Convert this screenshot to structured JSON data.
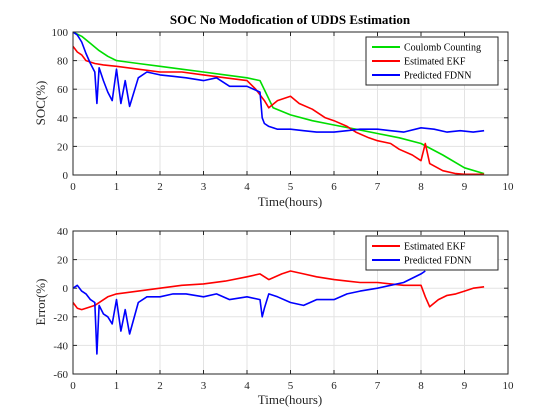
{
  "chart_data": [
    {
      "type": "line",
      "title": "SOC No Modofication of UDDS Estimation",
      "xlabel": "Time(hours)",
      "ylabel": "SOC(%)",
      "xlim": [
        0,
        10
      ],
      "ylim": [
        0,
        100
      ],
      "xticks": [
        "0",
        "1",
        "2",
        "3",
        "4",
        "5",
        "6",
        "7",
        "8",
        "9",
        "10"
      ],
      "yticks": [
        "0",
        "20",
        "40",
        "60",
        "80",
        "100"
      ],
      "grid": true,
      "legend_position": "top-right",
      "series": [
        {
          "name": "Coulomb Counting",
          "color": "#00dd00",
          "x": [
            0,
            0.2,
            0.4,
            0.6,
            0.8,
            1.0,
            1.5,
            2.0,
            2.5,
            3.0,
            3.5,
            4.0,
            4.3,
            4.6,
            5.0,
            5.5,
            6.0,
            6.5,
            7.0,
            7.5,
            8.0,
            8.5,
            9.0,
            9.45
          ],
          "y": [
            100,
            97,
            92,
            87,
            83,
            80,
            78,
            76,
            74,
            72,
            70,
            68,
            66,
            47,
            42,
            38,
            35,
            32,
            29,
            26,
            22,
            14,
            5,
            1
          ]
        },
        {
          "name": "Estimated EKF",
          "color": "#ff0000",
          "x": [
            0,
            0.1,
            0.2,
            0.3,
            0.5,
            0.7,
            1.0,
            1.5,
            2.0,
            2.5,
            3.0,
            3.5,
            4.0,
            4.2,
            4.4,
            4.5,
            4.7,
            5.0,
            5.2,
            5.5,
            5.8,
            6.0,
            6.3,
            6.5,
            6.8,
            7.0,
            7.3,
            7.5,
            7.8,
            8.0,
            8.1,
            8.2,
            8.5,
            8.8,
            9.0,
            9.2,
            9.45
          ],
          "y": [
            90,
            86,
            84,
            80,
            78,
            77,
            76,
            74,
            72,
            72,
            70,
            68,
            66,
            60,
            52,
            47,
            52,
            55,
            50,
            46,
            40,
            38,
            34,
            30,
            26,
            24,
            22,
            18,
            14,
            10,
            22,
            8,
            3,
            1,
            0.5,
            0.5,
            0.5
          ]
        },
        {
          "name": "Predicted FDNN",
          "color": "#0000ff",
          "x": [
            0,
            0.1,
            0.2,
            0.3,
            0.4,
            0.5,
            0.55,
            0.6,
            0.7,
            0.8,
            0.9,
            1.0,
            1.1,
            1.2,
            1.3,
            1.5,
            1.7,
            2.0,
            2.3,
            2.6,
            3.0,
            3.3,
            3.6,
            4.0,
            4.3,
            4.35,
            4.4,
            4.5,
            4.7,
            5.0,
            5.3,
            5.6,
            6.0,
            6.3,
            6.6,
            7.0,
            7.3,
            7.6,
            8.0,
            8.3,
            8.6,
            8.9,
            9.2,
            9.45
          ],
          "y": [
            100,
            98,
            93,
            85,
            78,
            72,
            50,
            75,
            66,
            58,
            52,
            74,
            50,
            66,
            48,
            68,
            72,
            70,
            69,
            68,
            66,
            68,
            62,
            62,
            58,
            40,
            36,
            34,
            32,
            32,
            31,
            30,
            30,
            31,
            32,
            32,
            31,
            30,
            33,
            32,
            30,
            31,
            30,
            31
          ]
        }
      ]
    },
    {
      "type": "line",
      "title": "",
      "xlabel": "Time(hours)",
      "ylabel": "Error(%)",
      "xlim": [
        0,
        10
      ],
      "ylim": [
        -60,
        40
      ],
      "xticks": [
        "0",
        "1",
        "2",
        "3",
        "4",
        "5",
        "6",
        "7",
        "8",
        "9",
        "10"
      ],
      "yticks": [
        "-60",
        "-40",
        "-20",
        "0",
        "20",
        "40"
      ],
      "grid": true,
      "legend_position": "top-right",
      "series": [
        {
          "name": "Estimated EKF",
          "color": "#ff0000",
          "x": [
            0,
            0.1,
            0.2,
            0.3,
            0.5,
            0.8,
            1.0,
            1.5,
            2.0,
            2.5,
            3.0,
            3.5,
            4.0,
            4.3,
            4.5,
            4.8,
            5.0,
            5.3,
            5.6,
            6.0,
            6.3,
            6.6,
            7.0,
            7.3,
            7.6,
            8.0,
            8.1,
            8.2,
            8.4,
            8.6,
            8.8,
            9.0,
            9.2,
            9.45
          ],
          "y": [
            -10,
            -14,
            -15,
            -14,
            -12,
            -6,
            -4,
            -2,
            0,
            2,
            3,
            5,
            8,
            10,
            6,
            10,
            12,
            10,
            8,
            6,
            5,
            4,
            4,
            3,
            2,
            2,
            -6,
            -13,
            -8,
            -5,
            -4,
            -2,
            0,
            1
          ]
        },
        {
          "name": "Predicted FDNN",
          "color": "#0000ff",
          "x": [
            0,
            0.1,
            0.2,
            0.3,
            0.4,
            0.5,
            0.55,
            0.6,
            0.7,
            0.8,
            0.9,
            1.0,
            1.1,
            1.2,
            1.3,
            1.5,
            1.7,
            2.0,
            2.3,
            2.6,
            3.0,
            3.3,
            3.6,
            4.0,
            4.3,
            4.35,
            4.4,
            4.5,
            4.7,
            5.0,
            5.3,
            5.6,
            6.0,
            6.3,
            6.6,
            7.0,
            7.3,
            7.6,
            8.0,
            8.1
          ],
          "y": [
            0,
            2,
            -2,
            -4,
            -8,
            -10,
            -46,
            -12,
            -18,
            -20,
            -25,
            -8,
            -30,
            -15,
            -32,
            -10,
            -6,
            -6,
            -4,
            -4,
            -6,
            -4,
            -8,
            -6,
            -8,
            -20,
            -14,
            -4,
            -6,
            -10,
            -12,
            -8,
            -8,
            -4,
            -2,
            0,
            2,
            4,
            10,
            12
          ]
        }
      ]
    }
  ]
}
